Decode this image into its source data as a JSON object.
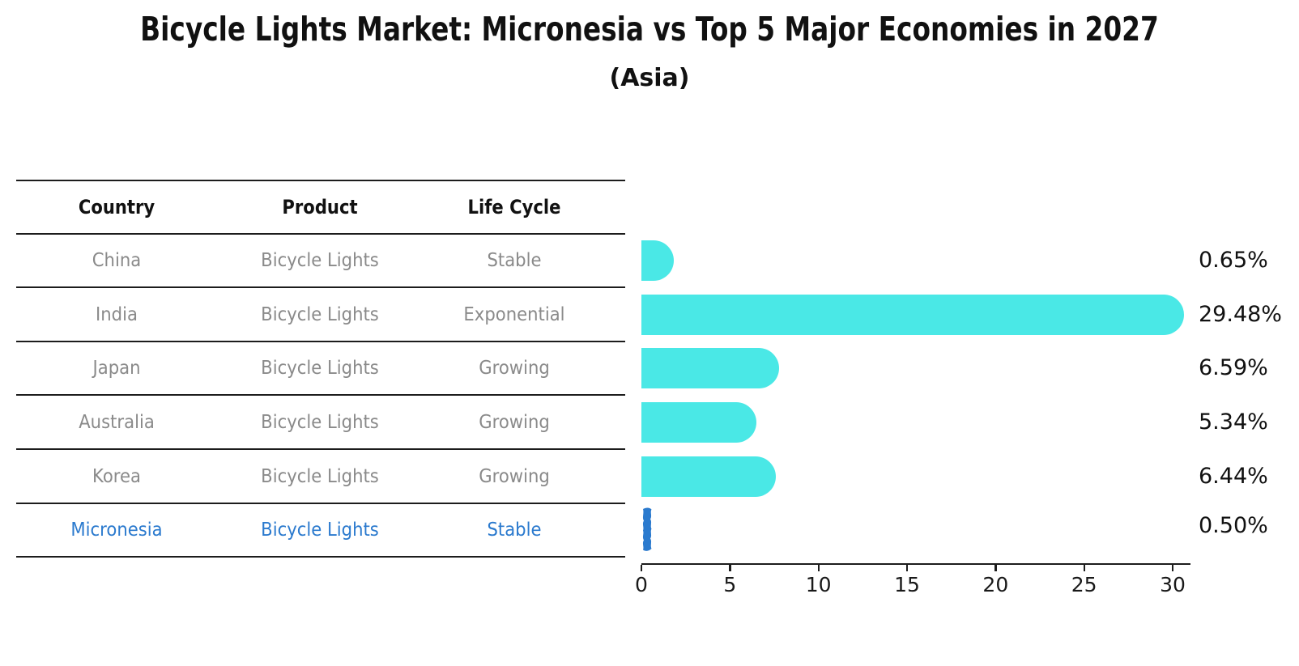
{
  "title": "Bicycle Lights Market: Micronesia vs Top 5 Major Economies in 2027",
  "subtitle": "(Asia)",
  "colors": {
    "bar": "#4AE8E6",
    "highlight": "#2B7ACE",
    "table_text": "#8A8A8A",
    "axis_text": "#191919"
  },
  "table": {
    "headers": [
      "Country",
      "Product",
      "Life Cycle"
    ],
    "rows": [
      {
        "country": "China",
        "product": "Bicycle Lights",
        "life_cycle": "Stable",
        "highlight": false
      },
      {
        "country": "India",
        "product": "Bicycle Lights",
        "life_cycle": "Exponential",
        "highlight": false
      },
      {
        "country": "Japan",
        "product": "Bicycle Lights",
        "life_cycle": "Growing",
        "highlight": false
      },
      {
        "country": "Australia",
        "product": "Bicycle Lights",
        "life_cycle": "Growing",
        "highlight": false
      },
      {
        "country": "Korea",
        "product": "Bicycle Lights",
        "life_cycle": "Growing",
        "highlight": false
      },
      {
        "country": "Micronesia",
        "product": "Bicycle Lights",
        "life_cycle": "Stable",
        "highlight": true
      }
    ]
  },
  "chart_data": {
    "type": "bar",
    "orientation": "horizontal",
    "title": "Bicycle Lights Market: Micronesia vs Top 5 Major Economies in 2027",
    "subtitle": "(Asia)",
    "categories": [
      "China",
      "India",
      "Japan",
      "Australia",
      "Korea",
      "Micronesia"
    ],
    "values": [
      0.65,
      29.48,
      6.59,
      5.34,
      6.44,
      0.5
    ],
    "value_labels": [
      "0.65%",
      "29.48%",
      "6.59%",
      "5.34%",
      "6.44%",
      "0.50%"
    ],
    "x_ticks": [
      "0",
      "5",
      "10",
      "15",
      "20",
      "25",
      "30"
    ],
    "x_tick_values": [
      0,
      5,
      10,
      15,
      20,
      25,
      30
    ],
    "xlim": [
      0,
      31
    ],
    "grid": false,
    "legend": false,
    "highlight_category": "Micronesia"
  }
}
